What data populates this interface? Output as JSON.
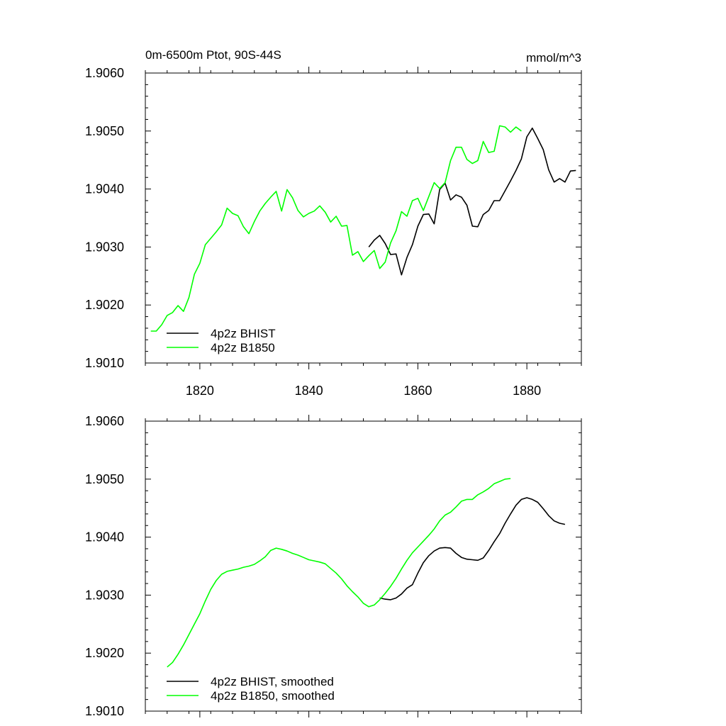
{
  "colors": {
    "bhist": "#000000",
    "b1850": "#00ff00"
  },
  "chart_data": [
    {
      "type": "line",
      "title": "0m-6500m Ptot, 90S-44S",
      "units": "mmol/m^3",
      "xlim": [
        1810,
        1890
      ],
      "ylim": [
        1.901,
        1.906
      ],
      "x_ticks": [
        1820,
        1840,
        1860,
        1880
      ],
      "x_tick_labels": [
        "1820",
        "1840",
        "1860",
        "1880"
      ],
      "y_ticks": [
        1.901,
        1.902,
        1.903,
        1.904,
        1.905,
        1.906
      ],
      "y_tick_labels": [
        "1.9010",
        "1.9020",
        "1.9030",
        "1.9040",
        "1.9050",
        "1.9060"
      ],
      "legend_position": "bottom-left",
      "series": [
        {
          "name": "4p2z BHIST",
          "color": "#000000",
          "x": [
            1851,
            1852,
            1853,
            1854,
            1855,
            1856,
            1857,
            1858,
            1859,
            1860,
            1861,
            1862,
            1863,
            1864,
            1865,
            1866,
            1867,
            1868,
            1869,
            1870,
            1871,
            1872,
            1873,
            1874,
            1875,
            1876,
            1877,
            1878,
            1879,
            1880,
            1881,
            1882,
            1883,
            1884,
            1885,
            1886,
            1887,
            1888,
            1889
          ],
          "y": [
            1.903,
            1.90312,
            1.9032,
            1.90306,
            1.90287,
            1.90288,
            1.90252,
            1.90282,
            1.90304,
            1.90336,
            1.90356,
            1.90357,
            1.9034,
            1.90399,
            1.9041,
            1.90381,
            1.9039,
            1.90386,
            1.90372,
            1.90336,
            1.90335,
            1.90356,
            1.90363,
            1.9038,
            1.9038,
            1.90397,
            1.90414,
            1.90432,
            1.90452,
            1.9049,
            1.90505,
            1.90487,
            1.90468,
            1.90433,
            1.90412,
            1.90418,
            1.90412,
            1.90431,
            1.90432
          ]
        },
        {
          "name": "4p2z B1850",
          "color": "#00ff00",
          "x": [
            1811,
            1812,
            1813,
            1814,
            1815,
            1816,
            1817,
            1818,
            1819,
            1820,
            1821,
            1822,
            1823,
            1824,
            1825,
            1826,
            1827,
            1828,
            1829,
            1830,
            1831,
            1832,
            1833,
            1834,
            1835,
            1836,
            1837,
            1838,
            1839,
            1840,
            1841,
            1842,
            1843,
            1844,
            1845,
            1846,
            1847,
            1848,
            1849,
            1850,
            1851,
            1852,
            1853,
            1854,
            1855,
            1856,
            1857,
            1858,
            1859,
            1860,
            1861,
            1862,
            1863,
            1864,
            1865,
            1866,
            1867,
            1868,
            1869,
            1870,
            1871,
            1872,
            1873,
            1874,
            1875,
            1876,
            1877,
            1878,
            1879
          ],
          "y": [
            1.90155,
            1.90155,
            1.90166,
            1.90182,
            1.90187,
            1.90199,
            1.90189,
            1.90213,
            1.90253,
            1.90272,
            1.90304,
            1.90315,
            1.90326,
            1.90338,
            1.90367,
            1.90358,
            1.90354,
            1.90335,
            1.90323,
            1.90344,
            1.90362,
            1.90375,
            1.90386,
            1.90396,
            1.90362,
            1.90399,
            1.90385,
            1.90363,
            1.90352,
            1.90358,
            1.90362,
            1.90371,
            1.9036,
            1.90343,
            1.90353,
            1.90336,
            1.90337,
            1.90286,
            1.90292,
            1.90275,
            1.90285,
            1.90294,
            1.90263,
            1.90274,
            1.90307,
            1.90328,
            1.90361,
            1.90353,
            1.9038,
            1.90384,
            1.90363,
            1.90387,
            1.90411,
            1.90401,
            1.90411,
            1.90449,
            1.90472,
            1.90472,
            1.90451,
            1.90444,
            1.90449,
            1.90482,
            1.90463,
            1.90465,
            1.90509,
            1.90507,
            1.90498,
            1.90507,
            1.905
          ]
        }
      ]
    },
    {
      "type": "line",
      "xlim": [
        1810,
        1890
      ],
      "ylim": [
        1.901,
        1.906
      ],
      "x_ticks": [
        1820,
        1840,
        1860,
        1880
      ],
      "y_ticks": [
        1.901,
        1.902,
        1.903,
        1.904,
        1.905,
        1.906
      ],
      "y_tick_labels": [
        "1.9010",
        "1.9020",
        "1.9030",
        "1.9040",
        "1.9050",
        "1.9060"
      ],
      "legend_position": "bottom-left",
      "series": [
        {
          "name": "4p2z BHIST, smoothed",
          "color": "#000000",
          "x": [
            1853,
            1854,
            1855,
            1856,
            1857,
            1858,
            1859,
            1860,
            1861,
            1862,
            1863,
            1864,
            1865,
            1866,
            1867,
            1868,
            1869,
            1870,
            1871,
            1872,
            1873,
            1874,
            1875,
            1876,
            1877,
            1878,
            1879,
            1880,
            1881,
            1882,
            1883,
            1884,
            1885,
            1886,
            1887
          ],
          "y": [
            1.90295,
            1.90293,
            1.90292,
            1.90295,
            1.90302,
            1.90312,
            1.90318,
            1.90338,
            1.90356,
            1.90368,
            1.90376,
            1.90381,
            1.90382,
            1.90381,
            1.90372,
            1.90365,
            1.90362,
            1.90361,
            1.9036,
            1.90364,
            1.90377,
            1.90392,
            1.90406,
            1.90424,
            1.9044,
            1.90455,
            1.90465,
            1.90468,
            1.90465,
            1.9046,
            1.90449,
            1.90437,
            1.90428,
            1.90424,
            1.90422
          ]
        },
        {
          "name": "4p2z B1850, smoothed",
          "color": "#00ff00",
          "x": [
            1814,
            1815,
            1816,
            1817,
            1818,
            1819,
            1820,
            1821,
            1822,
            1823,
            1824,
            1825,
            1826,
            1827,
            1828,
            1829,
            1830,
            1831,
            1832,
            1833,
            1834,
            1835,
            1836,
            1837,
            1838,
            1839,
            1840,
            1841,
            1842,
            1843,
            1844,
            1845,
            1846,
            1847,
            1848,
            1849,
            1850,
            1851,
            1852,
            1853,
            1854,
            1855,
            1856,
            1857,
            1858,
            1859,
            1860,
            1861,
            1862,
            1863,
            1864,
            1865,
            1866,
            1867,
            1868,
            1869,
            1870,
            1871,
            1872,
            1873,
            1874,
            1875,
            1876,
            1877
          ],
          "y": [
            1.90176,
            1.90184,
            1.90198,
            1.90214,
            1.90232,
            1.9025,
            1.90268,
            1.9029,
            1.9031,
            1.90325,
            1.90336,
            1.90341,
            1.90343,
            1.90345,
            1.90348,
            1.9035,
            1.90353,
            1.90359,
            1.90366,
            1.90377,
            1.90381,
            1.90379,
            1.90376,
            1.90372,
            1.90369,
            1.90365,
            1.90361,
            1.90359,
            1.90357,
            1.90354,
            1.90346,
            1.90338,
            1.90328,
            1.90316,
            1.90306,
            1.90297,
            1.90286,
            1.9028,
            1.90283,
            1.90292,
            1.90303,
            1.90315,
            1.90329,
            1.90345,
            1.9036,
            1.90373,
            1.90383,
            1.90393,
            1.90403,
            1.90414,
            1.90428,
            1.90438,
            1.90443,
            1.90452,
            1.90462,
            1.90465,
            1.90465,
            1.90473,
            1.90478,
            1.90484,
            1.90492,
            1.90496,
            1.905,
            1.90501
          ]
        }
      ]
    }
  ]
}
